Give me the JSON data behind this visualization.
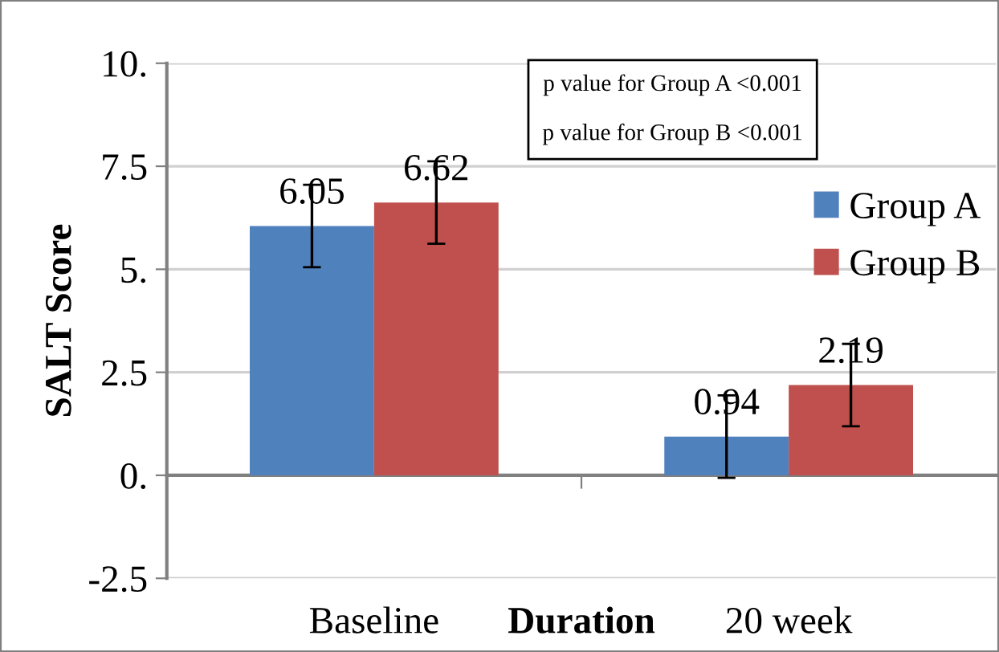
{
  "chart_data": {
    "type": "bar",
    "categories": [
      "Baseline",
      "20 week"
    ],
    "series": [
      {
        "name": "Group A",
        "color": "#4f81bd",
        "values": [
          6.05,
          0.94
        ],
        "errors": [
          1.0,
          1.0
        ]
      },
      {
        "name": "Group B",
        "color": "#c0504d",
        "values": [
          6.62,
          2.19
        ],
        "errors": [
          1.0,
          1.0
        ]
      }
    ],
    "xlabel": "Duration",
    "ylabel": "SALT Score",
    "ylim": [
      -2.5,
      10
    ],
    "yticks": [
      {
        "value": -2.5,
        "label": "-2.5"
      },
      {
        "value": 0,
        "label": "0."
      },
      {
        "value": 2.5,
        "label": "2.5"
      },
      {
        "value": 5,
        "label": "5."
      },
      {
        "value": 7.5,
        "label": "7.5"
      },
      {
        "value": 10,
        "label": "10."
      }
    ],
    "grid": "y",
    "legend": "right",
    "data_labels": true,
    "annotations": [
      "p value for Group A <0.001",
      "p value for Group B <0.001"
    ]
  }
}
